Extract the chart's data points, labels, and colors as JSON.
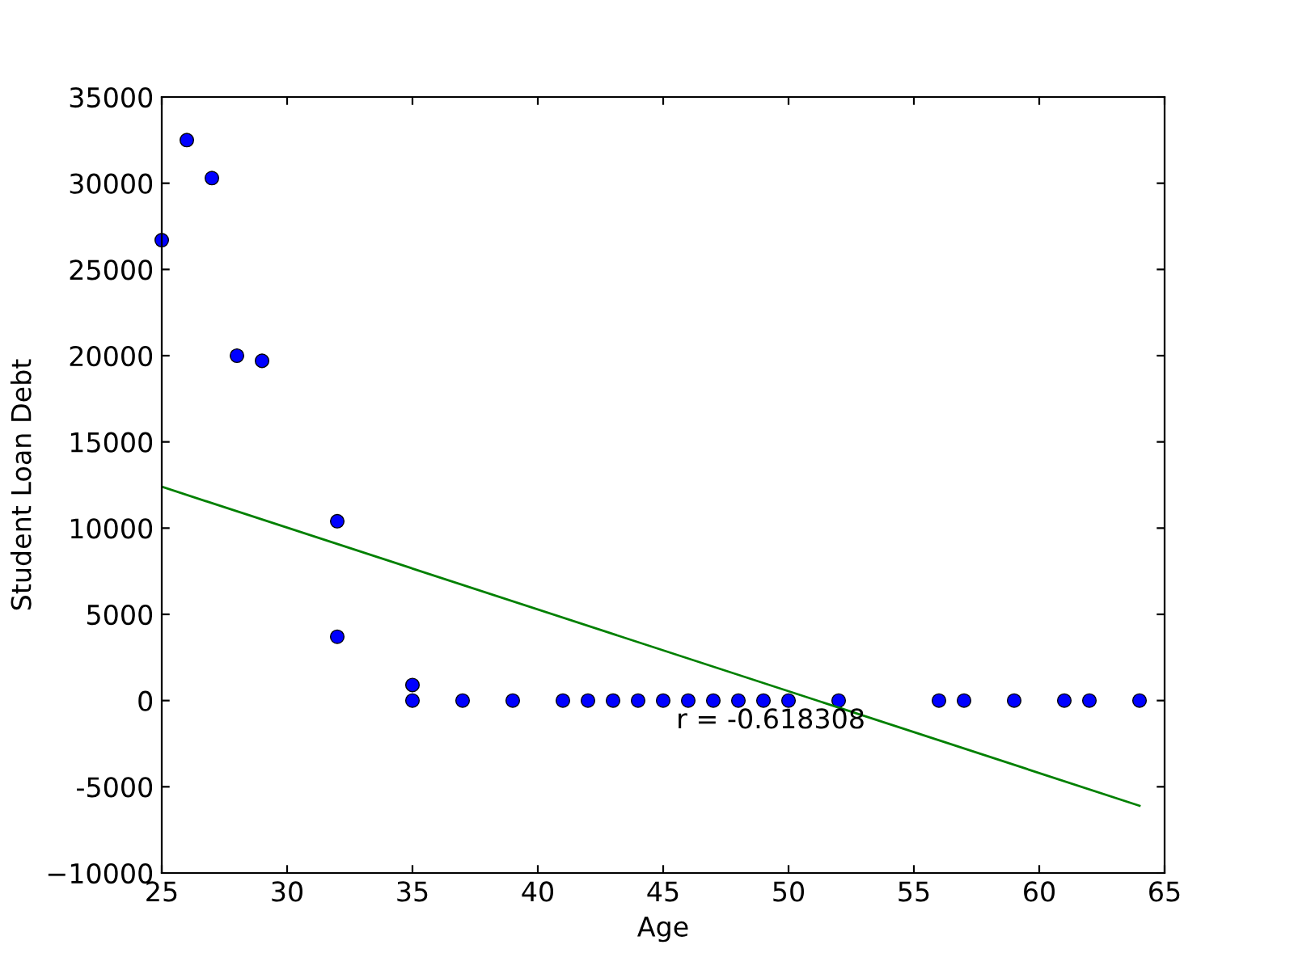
{
  "chart_data": {
    "type": "scatter",
    "xlabel": "Age",
    "ylabel": "Student Loan Debt",
    "series": [
      {
        "marker": "circle",
        "color": "#0000ff",
        "x": [
          25,
          26,
          27,
          28,
          29,
          32,
          32,
          35,
          35,
          37,
          39,
          41,
          42,
          43,
          44,
          45,
          46,
          47,
          48,
          49,
          50,
          52,
          56,
          57,
          59,
          61,
          62,
          64
        ],
        "values": [
          26700,
          32500,
          30300,
          20000,
          19700,
          10400,
          3700,
          900,
          0,
          0,
          0,
          0,
          0,
          0,
          0,
          0,
          0,
          0,
          0,
          0,
          0,
          0,
          0,
          0,
          0,
          0,
          0,
          0
        ]
      },
      {
        "type": "line",
        "marker": "none",
        "color": "#008000",
        "x": [
          25,
          64
        ],
        "values": [
          12400,
          -6100
        ]
      }
    ],
    "annotations": [
      "r = -0.618308"
    ],
    "xlim": [
      25,
      65
    ],
    "xticks": [
      25,
      30,
      35,
      40,
      45,
      50,
      55,
      60,
      65
    ],
    "ylim": [
      -10000,
      35000
    ],
    "yticks": [
      {
        "value": -10000,
        "label": "−10000"
      },
      -5000,
      0,
      5000,
      10000,
      15000,
      20000,
      25000,
      30000,
      35000
    ],
    "grid": false,
    "legend": false
  }
}
